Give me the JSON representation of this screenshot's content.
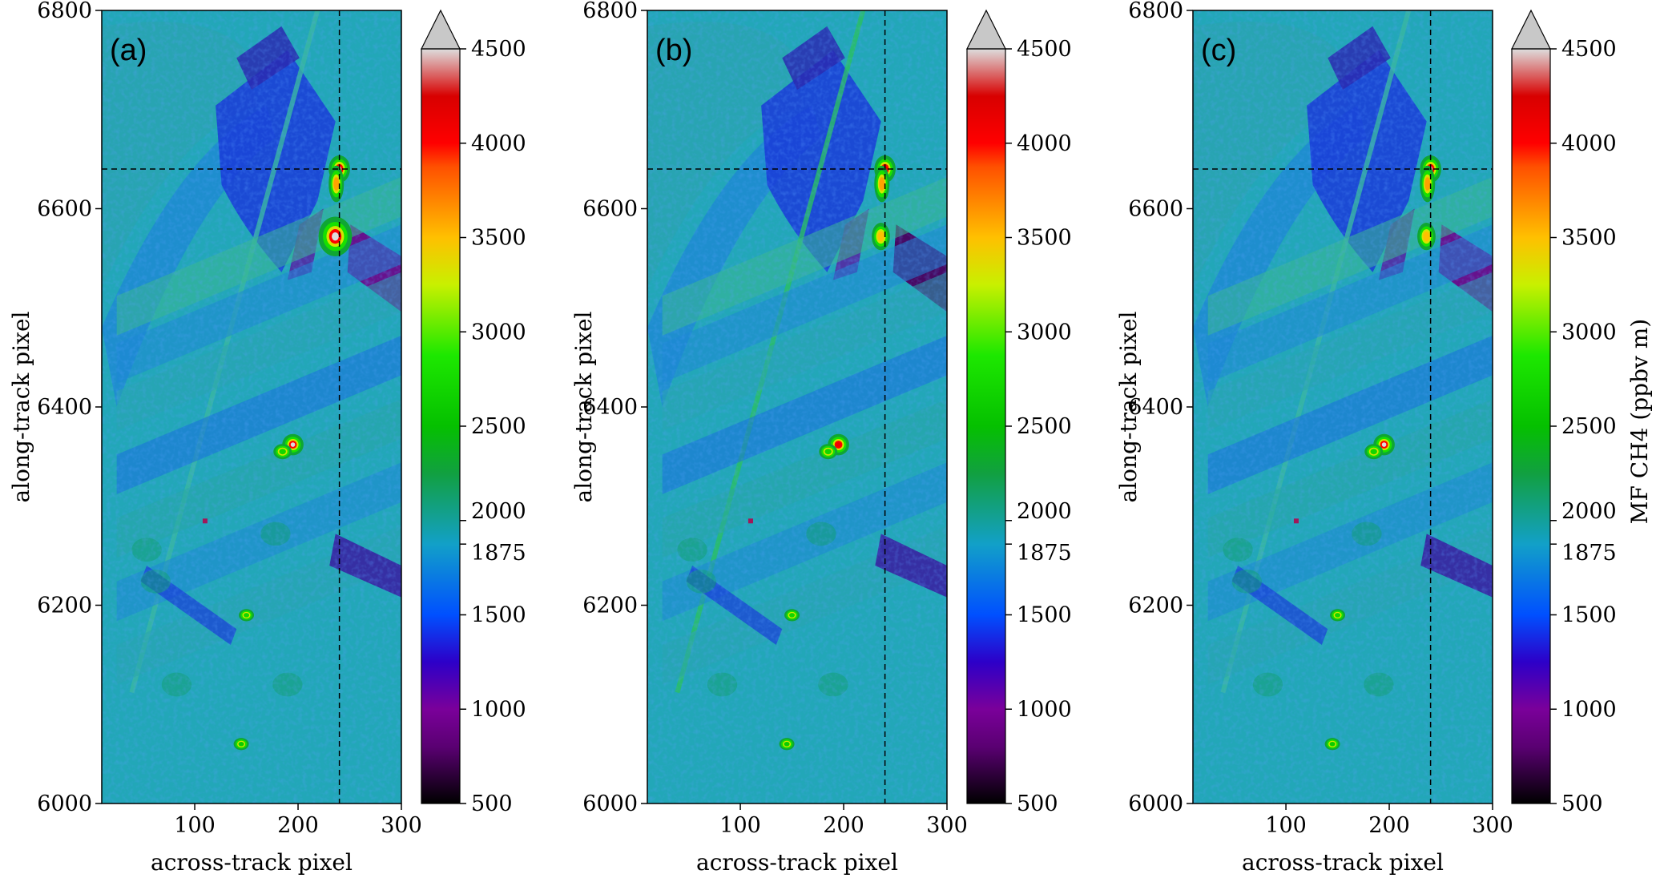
{
  "chart_data": [
    {
      "type": "heatmap",
      "panel_label": "(a)",
      "xlabel": "across-track pixel",
      "ylabel": "along-track pixel",
      "xticks": [
        100,
        200,
        300
      ],
      "yticks": [
        6000,
        6200,
        6400,
        6600,
        6800
      ],
      "xlim": [
        10,
        300
      ],
      "ylim": [
        6000,
        6800
      ],
      "crosshair": {
        "x": 240,
        "y": 6640
      },
      "colorbar": {
        "label": "",
        "range": [
          500,
          4500
        ],
        "ticks": [
          500,
          1000,
          1500,
          1875,
          2000,
          2500,
          3000,
          3500,
          4000,
          4500
        ],
        "extend": "max"
      }
    },
    {
      "type": "heatmap",
      "panel_label": "(b)",
      "xlabel": "across-track pixel",
      "ylabel": "along-track pixel",
      "xticks": [
        100,
        200,
        300
      ],
      "yticks": [
        6000,
        6200,
        6400,
        6600,
        6800
      ],
      "xlim": [
        10,
        300
      ],
      "ylim": [
        6000,
        6800
      ],
      "crosshair": {
        "x": 240,
        "y": 6640
      },
      "colorbar": {
        "label": "",
        "range": [
          500,
          4500
        ],
        "ticks": [
          500,
          1000,
          1500,
          1875,
          2000,
          2500,
          3000,
          3500,
          4000,
          4500
        ],
        "extend": "max"
      }
    },
    {
      "type": "heatmap",
      "panel_label": "(c)",
      "xlabel": "across-track pixel",
      "ylabel": "along-track pixel",
      "xticks": [
        100,
        200,
        300
      ],
      "yticks": [
        6000,
        6200,
        6400,
        6600,
        6800
      ],
      "xlim": [
        10,
        300
      ],
      "ylim": [
        6000,
        6800
      ],
      "crosshair": {
        "x": 240,
        "y": 6640
      },
      "colorbar": {
        "label": "MF CH4 (ppbv m)",
        "range": [
          500,
          4500
        ],
        "ticks": [
          500,
          1000,
          1500,
          1875,
          2000,
          2500,
          3000,
          3500,
          4000,
          4500
        ],
        "extend": "max"
      }
    }
  ],
  "colormap": {
    "stops": [
      [
        500,
        "#000000"
      ],
      [
        800,
        "#5a0072"
      ],
      [
        1000,
        "#7a009a"
      ],
      [
        1250,
        "#2d00c8"
      ],
      [
        1500,
        "#0050ff"
      ],
      [
        1875,
        "#12a0c8"
      ],
      [
        2000,
        "#13a09a"
      ],
      [
        2250,
        "#11a040"
      ],
      [
        2500,
        "#05c000"
      ],
      [
        2875,
        "#1de800"
      ],
      [
        3250,
        "#c8f000"
      ],
      [
        3500,
        "#ffc000"
      ],
      [
        3875,
        "#ff5000"
      ],
      [
        4000,
        "#ff0000"
      ],
      [
        4250,
        "#d80000"
      ],
      [
        4500,
        "#dddddd"
      ]
    ],
    "extend_color": "#c8c8c8",
    "field_base": "#22a7b8"
  }
}
